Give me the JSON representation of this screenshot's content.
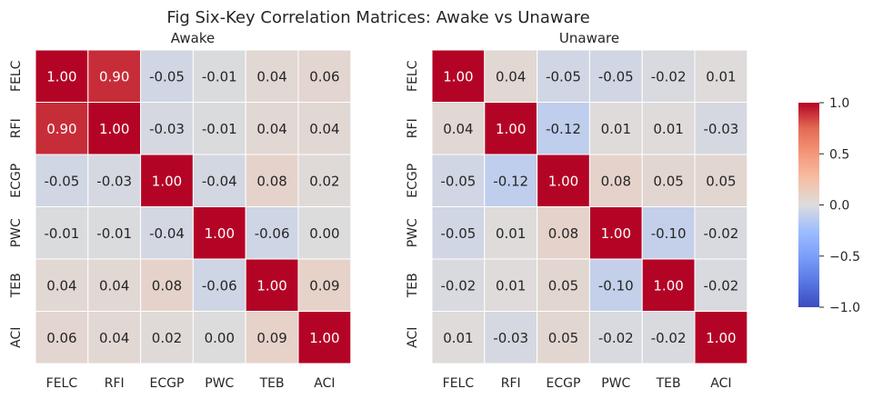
{
  "figure_title": "Fig Six-Key Correlation Matrices: Awake vs Unaware",
  "chart_data": [
    {
      "type": "heatmap",
      "title": "Awake",
      "labels": [
        "FELC",
        "RFI",
        "ECGP",
        "PWC",
        "TEB",
        "ACI"
      ],
      "matrix": [
        [
          1.0,
          0.9,
          -0.05,
          -0.01,
          0.04,
          0.06
        ],
        [
          0.9,
          1.0,
          -0.03,
          -0.01,
          0.04,
          0.04
        ],
        [
          -0.05,
          -0.03,
          1.0,
          -0.04,
          0.08,
          0.02
        ],
        [
          -0.01,
          -0.01,
          -0.04,
          1.0,
          -0.06,
          0.0
        ],
        [
          0.04,
          0.04,
          0.08,
          -0.06,
          1.0,
          0.09
        ],
        [
          0.06,
          0.04,
          0.02,
          0.0,
          0.09,
          1.0
        ]
      ],
      "value_format": "0.00"
    },
    {
      "type": "heatmap",
      "title": "Unaware",
      "labels": [
        "FELC",
        "RFI",
        "ECGP",
        "PWC",
        "TEB",
        "ACI"
      ],
      "matrix": [
        [
          1.0,
          0.04,
          -0.05,
          -0.05,
          -0.02,
          0.01
        ],
        [
          0.04,
          1.0,
          -0.12,
          0.01,
          0.01,
          -0.03
        ],
        [
          -0.05,
          -0.12,
          1.0,
          0.08,
          0.05,
          0.05
        ],
        [
          -0.05,
          0.01,
          0.08,
          1.0,
          -0.1,
          -0.02
        ],
        [
          -0.02,
          0.01,
          0.05,
          -0.1,
          1.0,
          -0.02
        ],
        [
          0.01,
          -0.03,
          0.05,
          -0.02,
          -0.02,
          1.0
        ]
      ],
      "value_format": "0.00"
    }
  ],
  "colorbar": {
    "colormap": "coolwarm",
    "range": [
      -1.0,
      1.0
    ],
    "ticks": [
      1.0,
      0.5,
      0.0,
      -0.5,
      -1.0
    ],
    "tick_labels": [
      "1.0",
      "0.5",
      "0.0",
      "−0.5",
      "−1.0"
    ]
  }
}
